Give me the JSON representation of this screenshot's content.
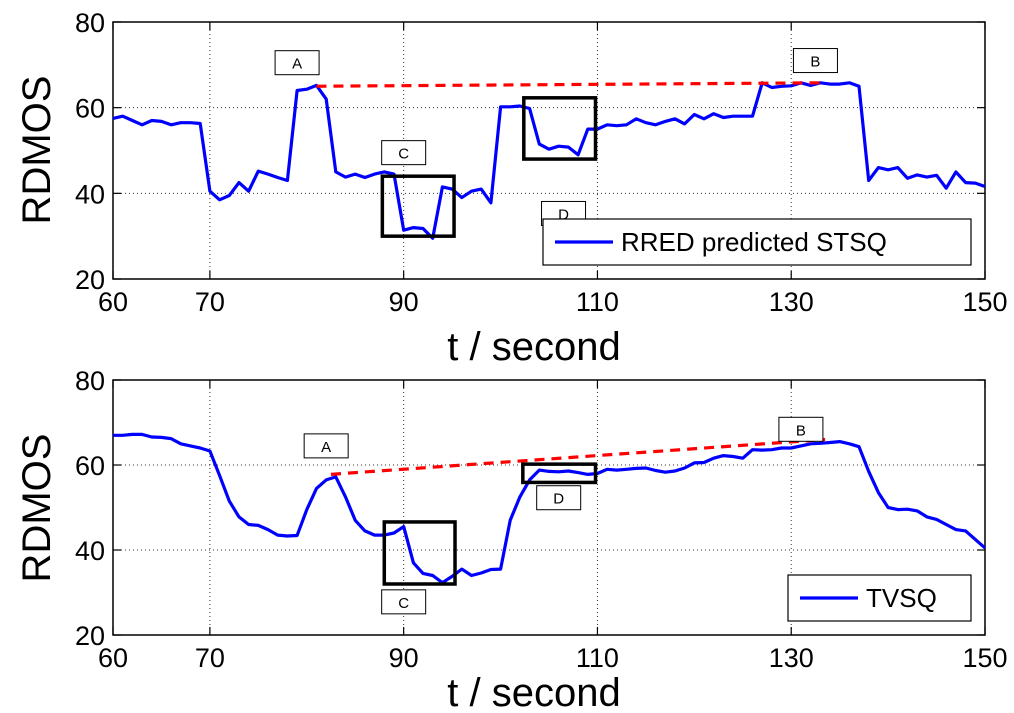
{
  "chart_data": [
    {
      "type": "line",
      "ylabel": "RDMOS",
      "xlabel": "t / second",
      "xlim": [
        60,
        150
      ],
      "ylim": [
        20,
        80
      ],
      "xticks": [
        "60",
        "70",
        "90",
        "110",
        "130",
        "150"
      ],
      "yticks": [
        "20",
        "40",
        "60",
        "80"
      ],
      "grid": true,
      "legend_position": "bottom-right",
      "series": [
        {
          "name": "RRED predicted STSQ",
          "color": "#0000ff",
          "x": [
            60,
            61,
            62,
            63,
            64,
            65,
            66,
            67,
            68,
            69,
            70,
            71,
            72,
            73,
            74,
            75,
            76,
            77,
            78,
            79,
            80,
            81,
            82,
            83,
            84,
            85,
            86,
            87,
            88,
            89,
            90,
            91,
            92,
            93,
            94,
            95,
            96,
            97,
            98,
            99,
            100,
            101,
            102,
            103,
            104,
            105,
            106,
            107,
            108,
            109,
            110,
            111,
            112,
            113,
            114,
            115,
            116,
            117,
            118,
            119,
            120,
            121,
            122,
            123,
            124,
            125,
            126,
            127,
            128,
            129,
            130,
            131,
            132,
            133,
            134,
            135,
            136,
            137,
            138,
            139,
            140,
            141,
            142,
            143,
            144,
            145,
            146,
            147,
            148,
            149,
            150
          ],
          "y": [
            57.5,
            58,
            57,
            56,
            57,
            56.8,
            56,
            56.5,
            56.5,
            56.3,
            40.5,
            38.5,
            39.5,
            42.5,
            40.5,
            45.2,
            44.5,
            43.7,
            43,
            64,
            64.3,
            65.2,
            62,
            45,
            43.8,
            44.5,
            43.7,
            44.5,
            45,
            44.5,
            31.4,
            32,
            31.8,
            29.5,
            41.5,
            41,
            39,
            40.5,
            41,
            37.8,
            60.2,
            60.2,
            60.4,
            59.8,
            51.5,
            50.3,
            51,
            50.8,
            49,
            55,
            55,
            56,
            55.8,
            56,
            57.4,
            56.5,
            56,
            56.8,
            57.4,
            56.2,
            58.4,
            57.4,
            58.6,
            57.7,
            58,
            58,
            58,
            65.8,
            64.7,
            65,
            65.1,
            65.8,
            65.2,
            65.8,
            65.5,
            65.5,
            65.8,
            65,
            43,
            46,
            45.5,
            46,
            43.5,
            44.3,
            43.8,
            44.2,
            41.2,
            45,
            42.5,
            42.4,
            41.6
          ]
        }
      ],
      "annotations": [
        {
          "label": "A",
          "x": 79,
          "y": 70.5
        },
        {
          "label": "B",
          "x": 132.5,
          "y": 71
        },
        {
          "label": "C",
          "x": 90,
          "y": 49.5
        },
        {
          "label": "D",
          "x": 106.5,
          "y": 35.3
        }
      ],
      "trend_line": {
        "color": "#ff0000",
        "x": [
          81,
          133
        ],
        "y": [
          65,
          65.8
        ]
      },
      "boxes": [
        {
          "x": [
            87.8,
            95.2
          ],
          "y": [
            30,
            44
          ]
        },
        {
          "x": [
            102.4,
            109.8
          ],
          "y": [
            48,
            62.3
          ]
        }
      ]
    },
    {
      "type": "line",
      "ylabel": "RDMOS",
      "xlabel": "t / second",
      "xlim": [
        60,
        150
      ],
      "ylim": [
        20,
        80
      ],
      "xticks": [
        "60",
        "70",
        "90",
        "110",
        "130",
        "150"
      ],
      "yticks": [
        "20",
        "40",
        "60",
        "80"
      ],
      "grid": true,
      "legend_position": "bottom-right",
      "series": [
        {
          "name": "TVSQ",
          "color": "#0000ff",
          "x": [
            60,
            61,
            62,
            63,
            64,
            65,
            66,
            67,
            68,
            69,
            70,
            71,
            72,
            73,
            74,
            75,
            76,
            77,
            78,
            79,
            80,
            81,
            82,
            83,
            84,
            85,
            86,
            87,
            88,
            89,
            90,
            91,
            92,
            93,
            94,
            95,
            96,
            97,
            98,
            99,
            100,
            101,
            102,
            103,
            104,
            105,
            106,
            107,
            108,
            109,
            110,
            111,
            112,
            113,
            114,
            115,
            116,
            117,
            118,
            119,
            120,
            121,
            122,
            123,
            124,
            125,
            126,
            127,
            128,
            129,
            130,
            131,
            132,
            133,
            134,
            135,
            136,
            137,
            138,
            139,
            140,
            141,
            142,
            143,
            144,
            145,
            146,
            147,
            148,
            149,
            150
          ],
          "y": [
            67,
            67,
            67.2,
            67.2,
            66.6,
            66.5,
            66.2,
            65,
            64.5,
            64,
            63.3,
            57.5,
            51.5,
            47.8,
            46,
            45.8,
            44.8,
            43.5,
            43.3,
            43.4,
            49.5,
            54.5,
            56.5,
            57.2,
            52.5,
            47,
            44.5,
            43.5,
            43.5,
            44,
            45.5,
            37,
            34.5,
            34,
            32.3,
            33.8,
            35.5,
            34,
            34.6,
            35.4,
            35.5,
            47,
            52.5,
            56.5,
            58.8,
            58.5,
            58.4,
            58.6,
            58.2,
            57.8,
            58,
            59,
            58.8,
            59,
            59.2,
            59.3,
            58.7,
            58.3,
            58.6,
            59.3,
            60.5,
            60.6,
            61.6,
            62.2,
            62,
            61.6,
            63.6,
            63.5,
            63.6,
            64,
            64,
            64.5,
            65,
            65.1,
            65.3,
            65.5,
            65,
            64.3,
            58.5,
            53.5,
            50,
            49.5,
            49.6,
            49.2,
            47.8,
            47.2,
            46,
            44.8,
            44.5,
            42.5,
            40.5
          ]
        }
      ],
      "annotations": [
        {
          "label": "A",
          "x": 82,
          "y": 64.5
        },
        {
          "label": "B",
          "x": 131,
          "y": 68.4
        },
        {
          "label": "C",
          "x": 90,
          "y": 27.8
        },
        {
          "label": "D",
          "x": 106,
          "y": 52.3
        }
      ],
      "trend_line": {
        "color": "#ff0000",
        "x": [
          82.5,
          133.5
        ],
        "y": [
          57.8,
          66
        ]
      },
      "boxes": [
        {
          "x": [
            88,
            95.3
          ],
          "y": [
            32,
            46.6
          ]
        },
        {
          "x": [
            102.3,
            109.8
          ],
          "y": [
            55.9,
            60.2
          ]
        }
      ]
    }
  ]
}
